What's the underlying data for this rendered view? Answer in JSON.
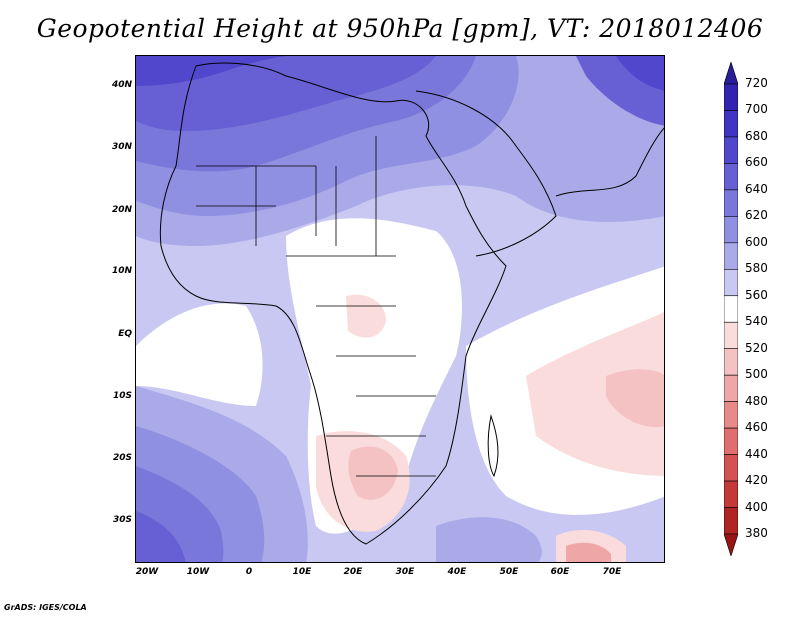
{
  "title": "Geopotential Height at 950hPa [gpm], VT: 2018012406",
  "credit": "GrADS: IGES/COLA",
  "lat_labels": [
    "40N",
    "30N",
    "20N",
    "10N",
    "EQ",
    "10S",
    "20S",
    "30S"
  ],
  "lon_labels": [
    "20W",
    "10W",
    "0",
    "10E",
    "20E",
    "30E",
    "40E",
    "50E",
    "60E",
    "70E"
  ],
  "legend": {
    "levels": [
      "720",
      "700",
      "680",
      "660",
      "640",
      "620",
      "600",
      "580",
      "560",
      "540",
      "520",
      "500",
      "480",
      "460",
      "440",
      "420",
      "400",
      "380"
    ],
    "colors": [
      "#2a1e98",
      "#3224b0",
      "#3f34c4",
      "#5147cc",
      "#6660d4",
      "#7a77da",
      "#9090e2",
      "#aaaae8",
      "#c8c8f2",
      "#ffffff",
      "#fadcdc",
      "#f4c2c2",
      "#eea6a6",
      "#e88a8a",
      "#e06e6e",
      "#d45252",
      "#c43838",
      "#b02424",
      "#981414"
    ]
  }
}
